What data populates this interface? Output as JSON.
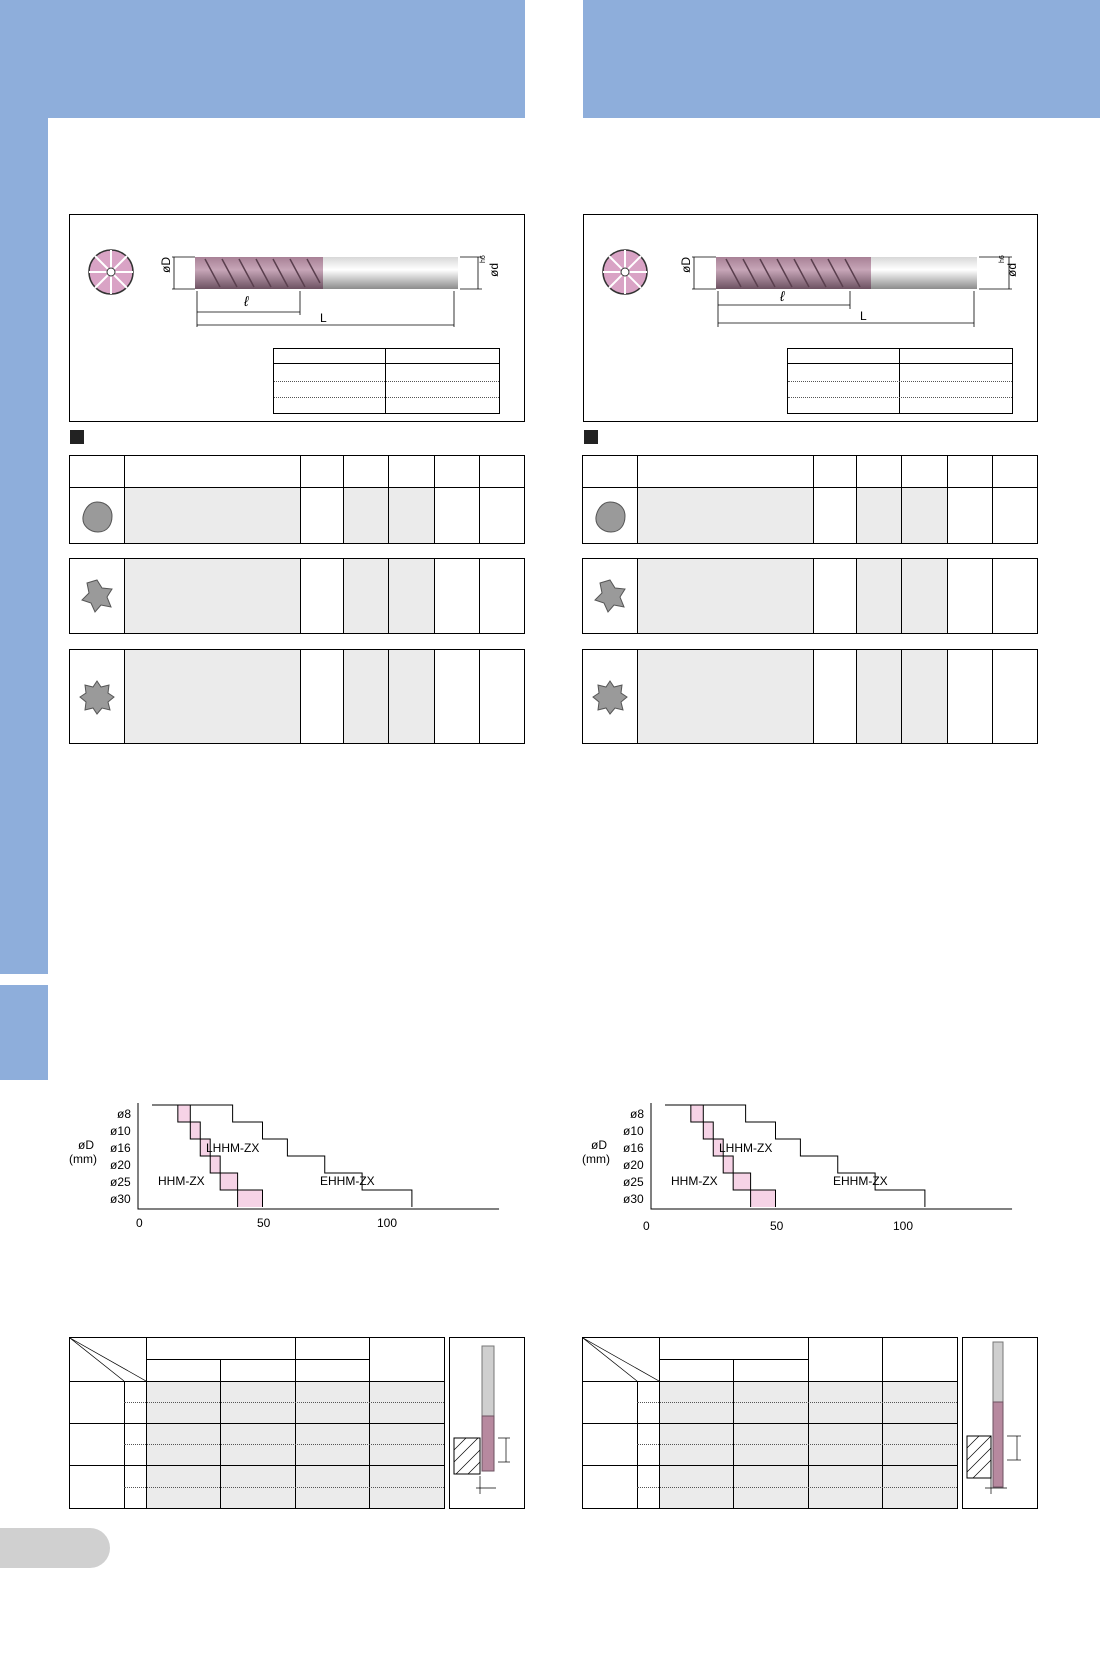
{
  "tool_drawing": {
    "dim_D": "øD",
    "dim_l": "ℓ",
    "dim_L": "L",
    "dim_d": "ød",
    "tolerance": "h6"
  },
  "chart_data": [
    {
      "type": "line",
      "ylabel": "øD",
      "yunit": "(mm)",
      "y_ticks": [
        "ø8",
        "ø10",
        "ø16",
        "ø20",
        "ø25",
        "ø30"
      ],
      "x_ticks": [
        "0",
        "50",
        "100"
      ],
      "xlim": [
        0,
        145
      ],
      "series": [
        {
          "name": "HHM-ZX",
          "steps": [
            [
              8,
              16
            ],
            [
              10,
              21
            ],
            [
              16,
              25
            ],
            [
              20,
              29
            ],
            [
              25,
              33
            ],
            [
              30,
              40
            ]
          ]
        },
        {
          "name": "LHHM-ZX",
          "steps": [
            [
              8,
              21
            ],
            [
              10,
              25
            ],
            [
              16,
              29
            ],
            [
              20,
              33
            ],
            [
              25,
              40
            ],
            [
              30,
              50
            ]
          ]
        },
        {
          "name": "EHHM-ZX",
          "steps": [
            [
              8,
              38
            ],
            [
              10,
              50
            ],
            [
              16,
              60
            ],
            [
              20,
              75
            ],
            [
              25,
              90
            ],
            [
              30,
              110
            ]
          ]
        }
      ]
    },
    {
      "type": "line",
      "ylabel": "øD",
      "yunit": "(mm)",
      "y_ticks": [
        "ø8",
        "ø10",
        "ø16",
        "ø20",
        "ø25",
        "ø30"
      ],
      "x_ticks": [
        "0",
        "50",
        "100"
      ],
      "xlim": [
        0,
        145
      ],
      "series": [
        {
          "name": "HHM-ZX",
          "steps": [
            [
              8,
              16
            ],
            [
              10,
              21
            ],
            [
              16,
              25
            ],
            [
              20,
              29
            ],
            [
              25,
              33
            ],
            [
              30,
              40
            ]
          ]
        },
        {
          "name": "LHHM-ZX",
          "steps": [
            [
              8,
              21
            ],
            [
              10,
              25
            ],
            [
              16,
              29
            ],
            [
              20,
              33
            ],
            [
              25,
              40
            ],
            [
              30,
              50
            ]
          ]
        },
        {
          "name": "EHHM-ZX",
          "steps": [
            [
              8,
              38
            ],
            [
              10,
              50
            ],
            [
              16,
              60
            ],
            [
              20,
              75
            ],
            [
              25,
              90
            ],
            [
              30,
              110
            ]
          ]
        }
      ]
    }
  ]
}
